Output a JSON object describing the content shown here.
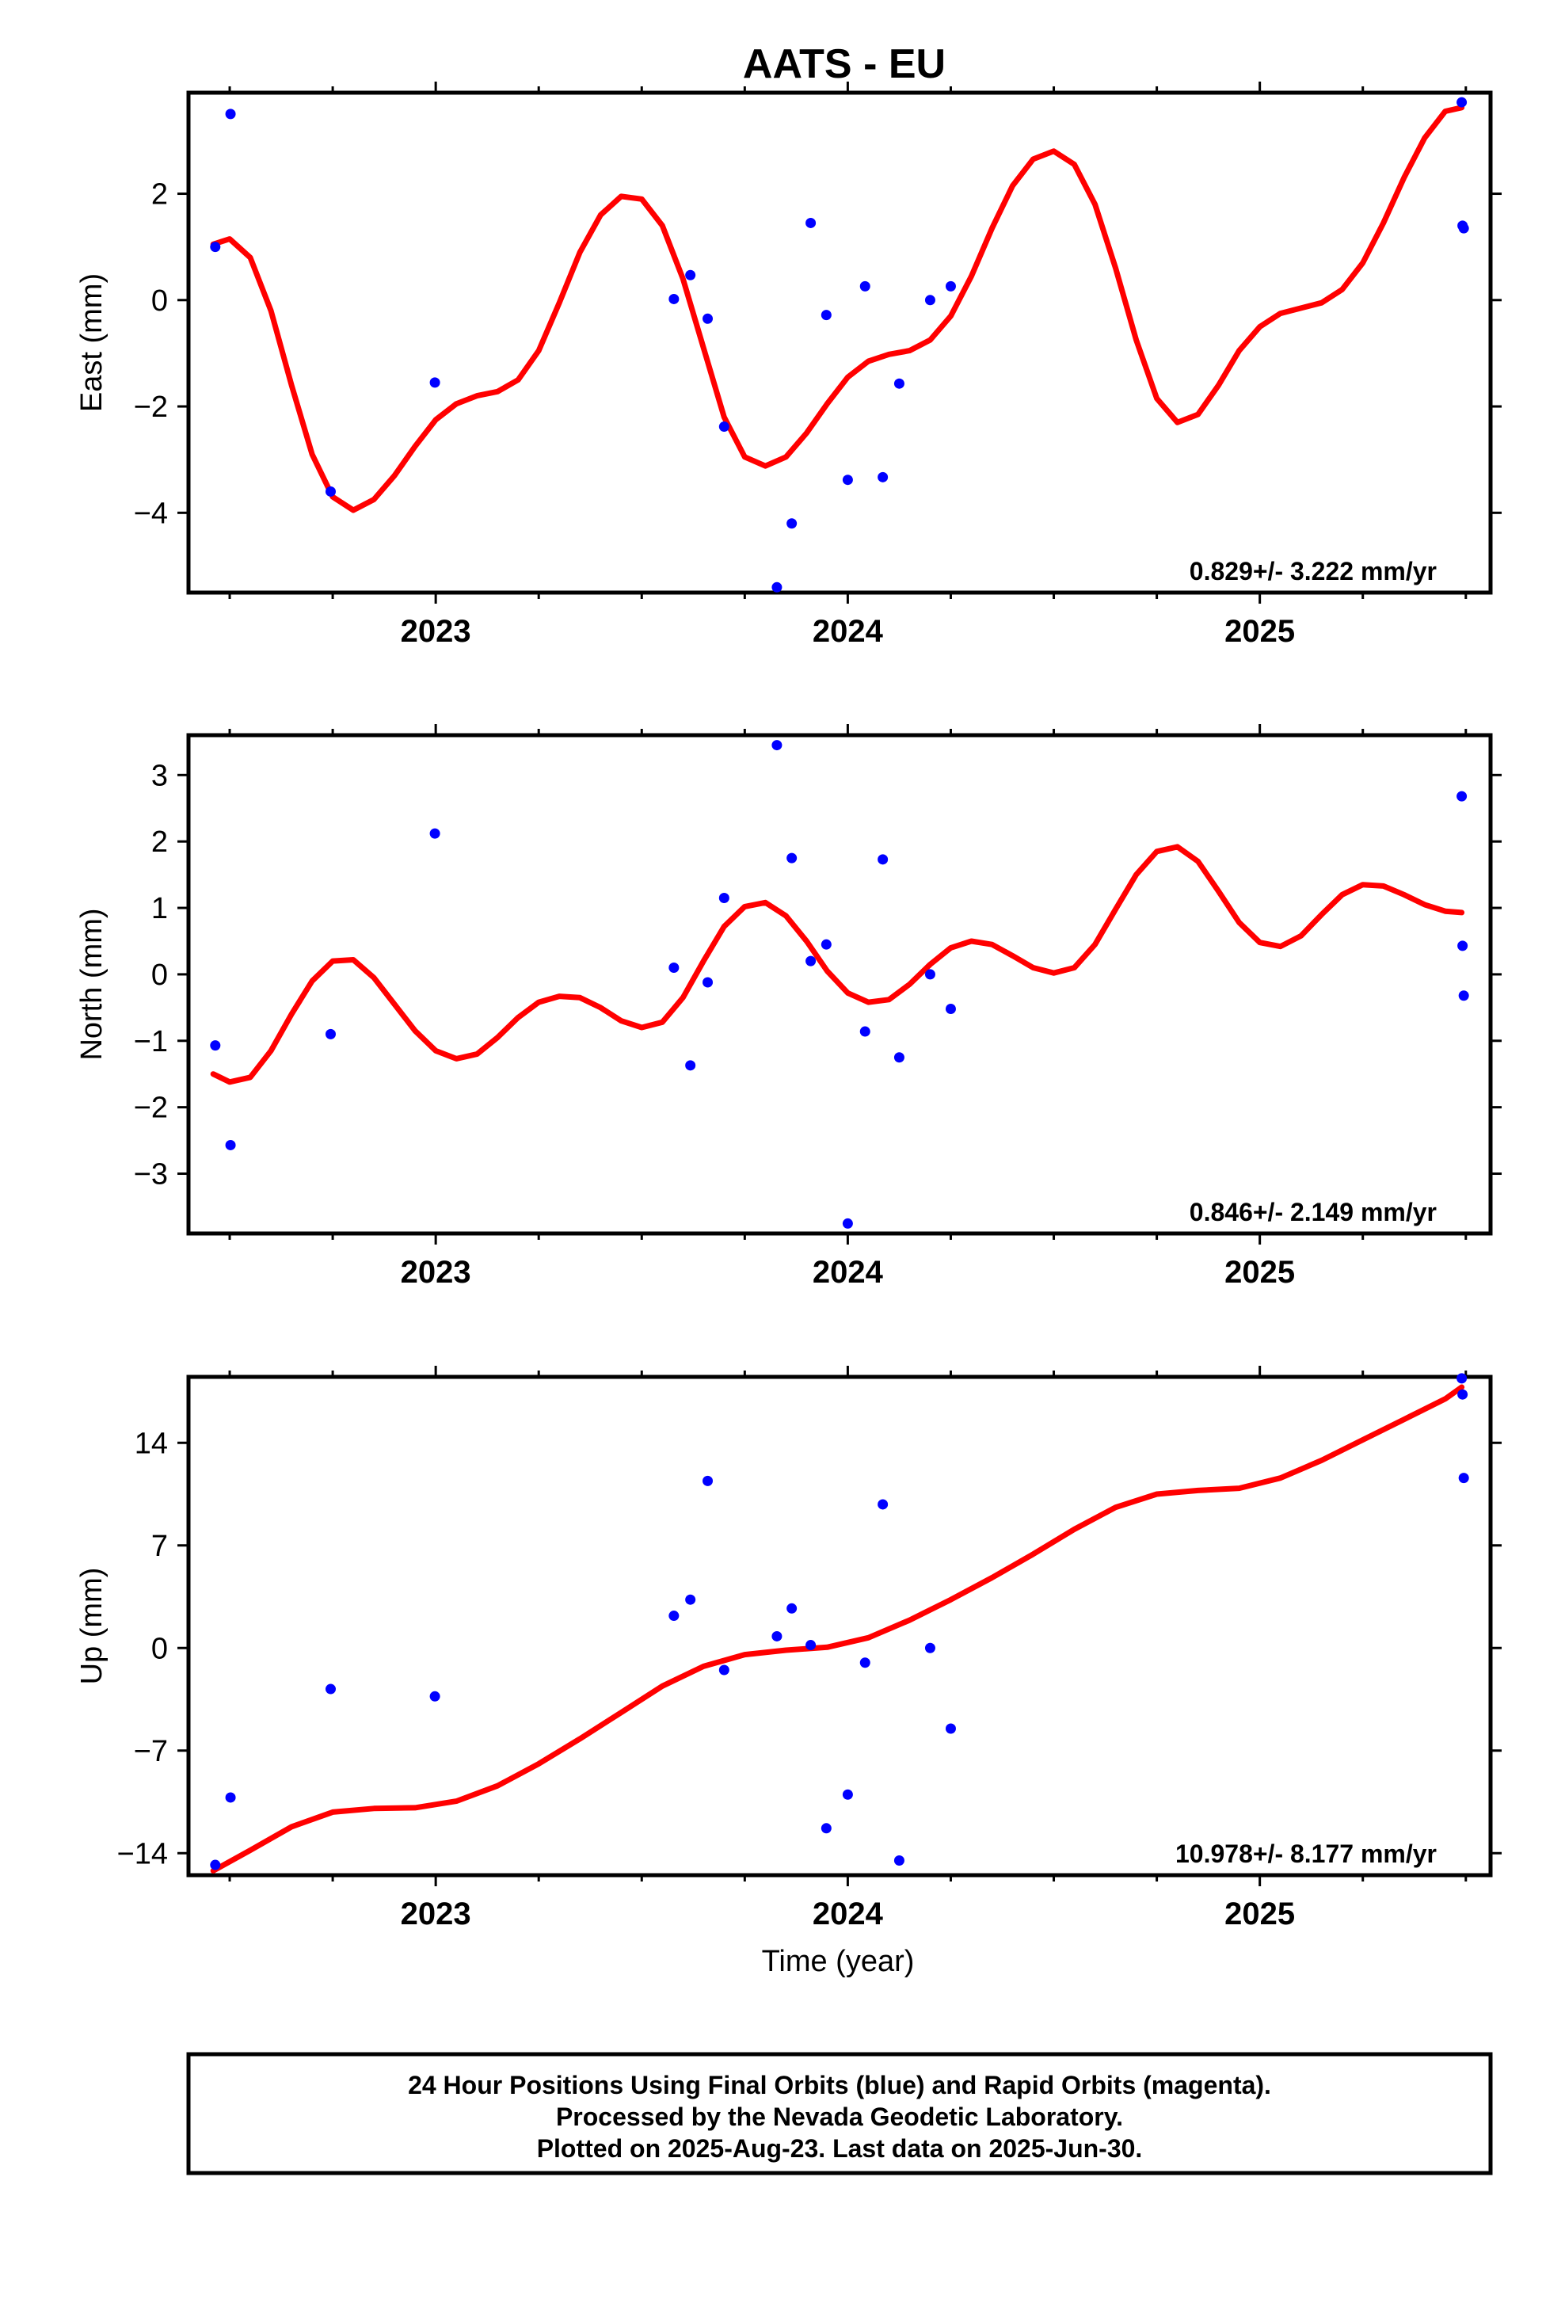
{
  "title": "AATS - EU",
  "xlabel": "Time (year)",
  "colors": {
    "points": "#0000ff",
    "fit": "#ff0000",
    "frame": "#000000"
  },
  "footer": {
    "line1": "24 Hour Positions Using Final Orbits (blue) and Rapid Orbits (magenta).",
    "line2": "Processed by the Nevada Geodetic Laboratory.",
    "line3": "Plotted on 2025-Aug-23. Last data on 2025-Jun-30."
  },
  "chart_data": [
    {
      "type": "scatter",
      "id": "east",
      "ylabel": "East (mm)",
      "rate": "0.829+/- 3.222 mm/yr",
      "xlim": [
        2022.4,
        2025.56
      ],
      "ylim": [
        -5.5,
        3.9
      ],
      "yticks": [
        -4,
        -2,
        0,
        2
      ],
      "xticks_major": [
        2023,
        2024,
        2025
      ],
      "xticks_major_labels": [
        "2023",
        "2024",
        "2025"
      ],
      "xticks_minor": [
        2022.5,
        2022.75,
        2023.25,
        2023.5,
        2023.75,
        2024.25,
        2024.5,
        2024.75,
        2025.25,
        2025.5
      ],
      "points": [
        [
          2022.465,
          1.0
        ],
        [
          2022.502,
          3.5
        ],
        [
          2022.745,
          -3.6
        ],
        [
          2022.998,
          -1.55
        ],
        [
          2023.578,
          0.02
        ],
        [
          2023.618,
          0.47
        ],
        [
          2023.66,
          -0.35
        ],
        [
          2023.7,
          -2.38
        ],
        [
          2023.828,
          -5.4
        ],
        [
          2023.864,
          -4.2
        ],
        [
          2023.91,
          1.45
        ],
        [
          2023.948,
          -0.28
        ],
        [
          2024.0,
          -3.38
        ],
        [
          2024.042,
          0.26
        ],
        [
          2024.085,
          -3.33
        ],
        [
          2024.125,
          -1.57
        ],
        [
          2024.2,
          0.0
        ],
        [
          2024.25,
          0.26
        ],
        [
          2025.49,
          3.72
        ],
        [
          2025.492,
          1.4
        ],
        [
          2025.495,
          1.35
        ]
      ],
      "fit": [
        [
          2022.46,
          1.05
        ],
        [
          2022.5,
          1.15
        ],
        [
          2022.55,
          0.8
        ],
        [
          2022.6,
          -0.2
        ],
        [
          2022.65,
          -1.6
        ],
        [
          2022.7,
          -2.9
        ],
        [
          2022.75,
          -3.7
        ],
        [
          2022.8,
          -3.95
        ],
        [
          2022.85,
          -3.75
        ],
        [
          2022.9,
          -3.3
        ],
        [
          2022.95,
          -2.75
        ],
        [
          2023.0,
          -2.25
        ],
        [
          2023.05,
          -1.95
        ],
        [
          2023.1,
          -1.8
        ],
        [
          2023.15,
          -1.72
        ],
        [
          2023.2,
          -1.5
        ],
        [
          2023.25,
          -0.95
        ],
        [
          2023.3,
          -0.05
        ],
        [
          2023.35,
          0.9
        ],
        [
          2023.4,
          1.6
        ],
        [
          2023.45,
          1.95
        ],
        [
          2023.5,
          1.9
        ],
        [
          2023.55,
          1.4
        ],
        [
          2023.6,
          0.4
        ],
        [
          2023.65,
          -0.9
        ],
        [
          2023.7,
          -2.2
        ],
        [
          2023.75,
          -2.95
        ],
        [
          2023.8,
          -3.12
        ],
        [
          2023.85,
          -2.95
        ],
        [
          2023.9,
          -2.5
        ],
        [
          2023.95,
          -1.95
        ],
        [
          2024.0,
          -1.45
        ],
        [
          2024.05,
          -1.15
        ],
        [
          2024.1,
          -1.02
        ],
        [
          2024.15,
          -0.95
        ],
        [
          2024.2,
          -0.75
        ],
        [
          2024.25,
          -0.3
        ],
        [
          2024.3,
          0.45
        ],
        [
          2024.35,
          1.35
        ],
        [
          2024.4,
          2.15
        ],
        [
          2024.45,
          2.65
        ],
        [
          2024.5,
          2.8
        ],
        [
          2024.55,
          2.55
        ],
        [
          2024.6,
          1.8
        ],
        [
          2024.65,
          0.6
        ],
        [
          2024.7,
          -0.75
        ],
        [
          2024.75,
          -1.85
        ],
        [
          2024.8,
          -2.3
        ],
        [
          2024.85,
          -2.15
        ],
        [
          2024.9,
          -1.6
        ],
        [
          2024.95,
          -0.95
        ],
        [
          2025.0,
          -0.5
        ],
        [
          2025.05,
          -0.25
        ],
        [
          2025.1,
          -0.15
        ],
        [
          2025.15,
          -0.05
        ],
        [
          2025.2,
          0.2
        ],
        [
          2025.25,
          0.7
        ],
        [
          2025.3,
          1.45
        ],
        [
          2025.35,
          2.3
        ],
        [
          2025.4,
          3.05
        ],
        [
          2025.45,
          3.55
        ],
        [
          2025.49,
          3.62
        ]
      ]
    },
    {
      "type": "scatter",
      "id": "north",
      "ylabel": "North (mm)",
      "rate": "0.846+/- 2.149 mm/yr",
      "xlim": [
        2022.4,
        2025.56
      ],
      "ylim": [
        -3.9,
        3.6
      ],
      "yticks": [
        -3,
        -2,
        -1,
        0,
        1,
        2,
        3
      ],
      "xticks_major": [
        2023,
        2024,
        2025
      ],
      "xticks_major_labels": [
        "2023",
        "2024",
        "2025"
      ],
      "xticks_minor": [
        2022.5,
        2022.75,
        2023.25,
        2023.5,
        2023.75,
        2024.25,
        2024.5,
        2024.75,
        2025.25,
        2025.5
      ],
      "points": [
        [
          2022.465,
          -1.07
        ],
        [
          2022.502,
          -2.57
        ],
        [
          2022.745,
          -0.9
        ],
        [
          2022.998,
          2.12
        ],
        [
          2023.578,
          0.1
        ],
        [
          2023.618,
          -1.37
        ],
        [
          2023.66,
          -0.12
        ],
        [
          2023.7,
          1.15
        ],
        [
          2023.828,
          3.45
        ],
        [
          2023.864,
          1.75
        ],
        [
          2023.91,
          0.2
        ],
        [
          2023.948,
          0.45
        ],
        [
          2024.0,
          -3.75
        ],
        [
          2024.042,
          -0.86
        ],
        [
          2024.085,
          1.73
        ],
        [
          2024.125,
          -1.25
        ],
        [
          2024.2,
          0.0
        ],
        [
          2024.25,
          -0.52
        ],
        [
          2025.49,
          2.68
        ],
        [
          2025.492,
          0.43
        ],
        [
          2025.495,
          -0.32
        ]
      ],
      "fit": [
        [
          2022.46,
          -1.5
        ],
        [
          2022.5,
          -1.62
        ],
        [
          2022.55,
          -1.55
        ],
        [
          2022.6,
          -1.15
        ],
        [
          2022.65,
          -0.6
        ],
        [
          2022.7,
          -0.1
        ],
        [
          2022.75,
          0.2
        ],
        [
          2022.8,
          0.22
        ],
        [
          2022.85,
          -0.05
        ],
        [
          2022.9,
          -0.45
        ],
        [
          2022.95,
          -0.85
        ],
        [
          2023.0,
          -1.15
        ],
        [
          2023.05,
          -1.27
        ],
        [
          2023.1,
          -1.2
        ],
        [
          2023.15,
          -0.95
        ],
        [
          2023.2,
          -0.65
        ],
        [
          2023.25,
          -0.42
        ],
        [
          2023.3,
          -0.33
        ],
        [
          2023.35,
          -0.35
        ],
        [
          2023.4,
          -0.5
        ],
        [
          2023.45,
          -0.7
        ],
        [
          2023.5,
          -0.8
        ],
        [
          2023.55,
          -0.72
        ],
        [
          2023.6,
          -0.35
        ],
        [
          2023.65,
          0.2
        ],
        [
          2023.7,
          0.72
        ],
        [
          2023.75,
          1.02
        ],
        [
          2023.8,
          1.08
        ],
        [
          2023.85,
          0.88
        ],
        [
          2023.9,
          0.5
        ],
        [
          2023.95,
          0.05
        ],
        [
          2024.0,
          -0.28
        ],
        [
          2024.05,
          -0.42
        ],
        [
          2024.1,
          -0.38
        ],
        [
          2024.15,
          -0.15
        ],
        [
          2024.2,
          0.15
        ],
        [
          2024.25,
          0.4
        ],
        [
          2024.3,
          0.5
        ],
        [
          2024.35,
          0.45
        ],
        [
          2024.4,
          0.28
        ],
        [
          2024.45,
          0.1
        ],
        [
          2024.5,
          0.02
        ],
        [
          2024.55,
          0.1
        ],
        [
          2024.6,
          0.45
        ],
        [
          2024.65,
          0.98
        ],
        [
          2024.7,
          1.5
        ],
        [
          2024.75,
          1.85
        ],
        [
          2024.8,
          1.92
        ],
        [
          2024.85,
          1.7
        ],
        [
          2024.9,
          1.25
        ],
        [
          2024.95,
          0.78
        ],
        [
          2025.0,
          0.48
        ],
        [
          2025.05,
          0.42
        ],
        [
          2025.1,
          0.58
        ],
        [
          2025.15,
          0.9
        ],
        [
          2025.2,
          1.2
        ],
        [
          2025.25,
          1.35
        ],
        [
          2025.3,
          1.33
        ],
        [
          2025.35,
          1.2
        ],
        [
          2025.4,
          1.05
        ],
        [
          2025.45,
          0.95
        ],
        [
          2025.49,
          0.93
        ]
      ]
    },
    {
      "type": "scatter",
      "id": "up",
      "ylabel": "Up (mm)",
      "rate": "10.978+/- 8.177 mm/yr",
      "xlim": [
        2022.4,
        2025.56
      ],
      "ylim": [
        -15.5,
        18.5
      ],
      "yticks": [
        -14,
        -7,
        0,
        7,
        14
      ],
      "xticks_major": [
        2023,
        2024,
        2025
      ],
      "xticks_major_labels": [
        "2023",
        "2024",
        "2025"
      ],
      "xticks_minor": [
        2022.5,
        2022.75,
        2023.25,
        2023.5,
        2023.75,
        2024.25,
        2024.5,
        2024.75,
        2025.25,
        2025.5
      ],
      "points": [
        [
          2022.465,
          -14.8
        ],
        [
          2022.502,
          -10.2
        ],
        [
          2022.745,
          -2.8
        ],
        [
          2022.998,
          -3.3
        ],
        [
          2023.578,
          2.2
        ],
        [
          2023.618,
          3.3
        ],
        [
          2023.66,
          11.4
        ],
        [
          2023.7,
          -1.5
        ],
        [
          2023.828,
          0.8
        ],
        [
          2023.864,
          2.7
        ],
        [
          2023.91,
          0.2
        ],
        [
          2023.948,
          -12.3
        ],
        [
          2024.0,
          -10.0
        ],
        [
          2024.042,
          -1.0
        ],
        [
          2024.085,
          9.8
        ],
        [
          2024.125,
          -14.5
        ],
        [
          2024.2,
          0.0
        ],
        [
          2024.25,
          -5.5
        ],
        [
          2025.49,
          18.4
        ],
        [
          2025.492,
          17.3
        ],
        [
          2025.495,
          11.6
        ]
      ],
      "fit": [
        [
          2022.46,
          -15.2
        ],
        [
          2022.55,
          -13.8
        ],
        [
          2022.65,
          -12.2
        ],
        [
          2022.75,
          -11.2
        ],
        [
          2022.85,
          -10.95
        ],
        [
          2022.95,
          -10.9
        ],
        [
          2023.05,
          -10.45
        ],
        [
          2023.15,
          -9.4
        ],
        [
          2023.25,
          -7.9
        ],
        [
          2023.35,
          -6.2
        ],
        [
          2023.45,
          -4.4
        ],
        [
          2023.55,
          -2.6
        ],
        [
          2023.65,
          -1.25
        ],
        [
          2023.75,
          -0.45
        ],
        [
          2023.85,
          -0.15
        ],
        [
          2023.95,
          0.05
        ],
        [
          2024.05,
          0.7
        ],
        [
          2024.15,
          1.9
        ],
        [
          2024.25,
          3.3
        ],
        [
          2024.35,
          4.8
        ],
        [
          2024.45,
          6.4
        ],
        [
          2024.55,
          8.1
        ],
        [
          2024.65,
          9.6
        ],
        [
          2024.75,
          10.5
        ],
        [
          2024.85,
          10.75
        ],
        [
          2024.95,
          10.9
        ],
        [
          2025.05,
          11.6
        ],
        [
          2025.15,
          12.8
        ],
        [
          2025.25,
          14.2
        ],
        [
          2025.35,
          15.6
        ],
        [
          2025.45,
          17.0
        ],
        [
          2025.49,
          17.8
        ]
      ]
    }
  ]
}
